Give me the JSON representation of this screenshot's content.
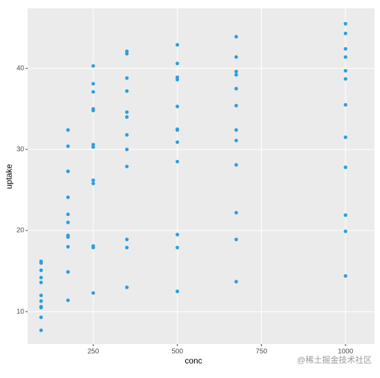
{
  "chart_data": {
    "type": "scatter",
    "x_label": "conc",
    "y_label": "uptake",
    "x": [
      95,
      175,
      250,
      350,
      500,
      675,
      1000,
      95,
      175,
      250,
      350,
      500,
      675,
      1000,
      95,
      175,
      250,
      350,
      500,
      675,
      1000,
      95,
      175,
      250,
      350,
      500,
      675,
      1000,
      95,
      175,
      250,
      350,
      500,
      675,
      1000,
      95,
      175,
      250,
      350,
      500,
      675,
      1000,
      95,
      175,
      250,
      350,
      500,
      675,
      1000,
      95,
      175,
      250,
      350,
      500,
      675,
      1000,
      95,
      175,
      250,
      350,
      500,
      675,
      1000,
      95,
      175,
      250,
      350,
      500,
      675,
      1000,
      95,
      175,
      250,
      350,
      500,
      675,
      1000,
      95,
      175,
      250,
      350,
      500,
      675,
      1000
    ],
    "values": [
      16.0,
      30.4,
      34.8,
      37.2,
      35.3,
      39.2,
      39.7,
      13.6,
      27.3,
      37.1,
      41.8,
      40.6,
      41.4,
      44.3,
      16.2,
      32.4,
      40.3,
      42.1,
      42.9,
      43.9,
      45.5,
      14.2,
      24.1,
      30.3,
      34.6,
      32.5,
      35.4,
      38.7,
      9.3,
      27.3,
      35.0,
      38.8,
      38.6,
      37.5,
      42.4,
      15.1,
      21.0,
      38.1,
      34.0,
      38.9,
      39.6,
      41.4,
      10.6,
      19.2,
      26.2,
      30.0,
      30.9,
      32.4,
      35.5,
      12.0,
      22.0,
      30.6,
      31.8,
      32.4,
      31.1,
      31.5,
      11.3,
      19.4,
      25.8,
      27.9,
      28.5,
      28.1,
      27.8,
      10.5,
      14.9,
      18.1,
      18.9,
      19.5,
      22.2,
      21.9,
      7.7,
      11.4,
      12.3,
      13.0,
      12.5,
      13.7,
      14.4,
      10.6,
      18.0,
      17.9,
      17.9,
      17.9,
      18.9,
      19.9
    ],
    "color": "#2a9fe0",
    "xlim": [
      55,
      1086
    ],
    "ylim": [
      6,
      47.4
    ],
    "xticks": [
      250,
      500,
      750,
      1000
    ],
    "yticks": [
      10,
      20,
      30,
      40
    ],
    "grid": true,
    "watermark": "@稀土掘金技术社区"
  }
}
